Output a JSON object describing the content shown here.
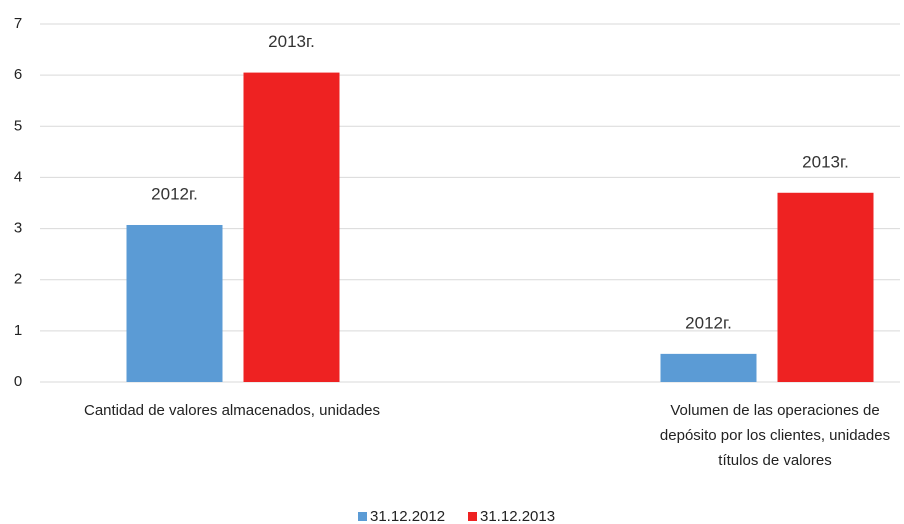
{
  "chart_data": {
    "type": "bar",
    "categories": [
      "Cantidad de valores almacenados, unidades",
      "Volumen de las operaciones de depósito por los clientes, unidades títulos de valores"
    ],
    "series": [
      {
        "name": "31.12.2012",
        "color": "#5b9bd5",
        "values": [
          3.07,
          0.55
        ],
        "value_labels": [
          "2012г.",
          "2012г."
        ]
      },
      {
        "name": "31.12.2013",
        "color": "#ee2222",
        "values": [
          6.05,
          3.7
        ],
        "value_labels": [
          "2013г.",
          "2013г."
        ]
      }
    ],
    "ylim": [
      0,
      7
    ],
    "yticks": [
      0,
      1,
      2,
      3,
      4,
      5,
      6,
      7
    ],
    "grid": true,
    "legend": "bottom"
  }
}
